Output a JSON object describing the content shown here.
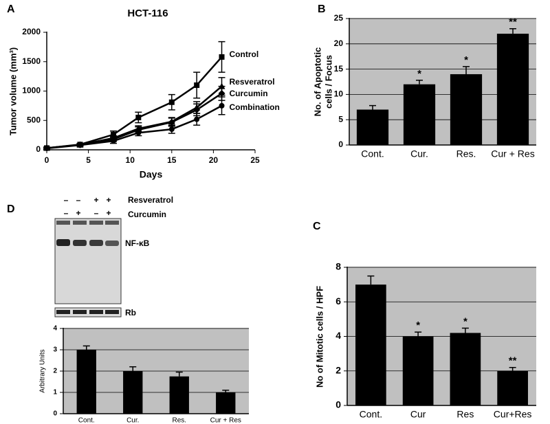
{
  "chart_data": [
    {
      "type": "line",
      "panel": "A",
      "title": "HCT-116",
      "xlabel": "Days",
      "ylabel": "Tumor volume (mm³)",
      "x": [
        0,
        4,
        8,
        11,
        15,
        18,
        21
      ],
      "series": [
        {
          "name": "Control",
          "color": "#000000",
          "values": [
            30,
            90,
            260,
            550,
            810,
            1100,
            1580
          ],
          "errors": [
            15,
            20,
            60,
            90,
            130,
            220,
            260
          ]
        },
        {
          "name": "Resveratrol",
          "color": "#000000",
          "values": [
            30,
            85,
            200,
            360,
            480,
            720,
            1080
          ],
          "errors": [
            15,
            20,
            40,
            50,
            70,
            100,
            150
          ]
        },
        {
          "name": "Curcumin",
          "color": "#000000",
          "values": [
            30,
            85,
            180,
            340,
            470,
            680,
            960
          ],
          "errors": [
            15,
            20,
            40,
            50,
            70,
            100,
            120
          ]
        },
        {
          "name": "Combination",
          "color": "#000000",
          "values": [
            25,
            80,
            150,
            290,
            350,
            520,
            750
          ],
          "errors": [
            15,
            20,
            40,
            50,
            70,
            100,
            150
          ]
        }
      ],
      "xlim": [
        0,
        25
      ],
      "xticks": [
        0,
        5,
        10,
        15,
        20,
        25
      ],
      "ylim": [
        0,
        2000
      ],
      "yticks": [
        0,
        500,
        1000,
        1500,
        2000
      ],
      "grid": false
    },
    {
      "type": "bar",
      "panel": "B",
      "ylabel": [
        "No. of Apoptotic",
        "cells  / Focus"
      ],
      "categories": [
        "Cont.",
        "Cur.",
        "Res.",
        "Cur + Res"
      ],
      "values": [
        7,
        12,
        14,
        22
      ],
      "errors": [
        0.8,
        0.8,
        1.5,
        1.0
      ],
      "significance": [
        null,
        "*",
        "*",
        "**"
      ],
      "color": "#000000",
      "ylim": [
        0,
        25
      ],
      "yticks": [
        0,
        5,
        10,
        15,
        20,
        25
      ],
      "grid": true
    },
    {
      "type": "bar",
      "panel": "C",
      "ylabel": [
        "No of Mitotic cells / HPF"
      ],
      "categories": [
        "Cont.",
        "Cur",
        "Res",
        "Cur+Res"
      ],
      "values": [
        7,
        4,
        4.2,
        2
      ],
      "errors": [
        0.5,
        0.25,
        0.28,
        0.2
      ],
      "significance": [
        null,
        "*",
        "*",
        "**"
      ],
      "color": "#000000",
      "ylim": [
        0,
        8
      ],
      "yticks": [
        0,
        2,
        4,
        6,
        8
      ],
      "grid": true
    },
    {
      "type": "bar",
      "panel": "D",
      "ylabel": [
        "Arbitrary Units"
      ],
      "categories": [
        "Cont.",
        "Cur.",
        "Res.",
        "Cur + Res"
      ],
      "values": [
        3,
        2,
        1.75,
        1
      ],
      "errors": [
        0.18,
        0.2,
        0.2,
        0.1
      ],
      "significance": [
        null,
        null,
        null,
        null
      ],
      "color": "#000000",
      "ylim": [
        0,
        4
      ],
      "yticks": [
        0,
        1,
        2,
        3,
        4
      ],
      "grid": true
    }
  ],
  "gel": {
    "rows": [
      {
        "label": "Resveratrol",
        "signs": [
          "–",
          "–",
          "+",
          "+"
        ]
      },
      {
        "label": "Curcumin",
        "signs": [
          "–",
          "+",
          "–",
          "+"
        ]
      }
    ],
    "band_label": "NF-κB",
    "control_label": "Rb"
  }
}
